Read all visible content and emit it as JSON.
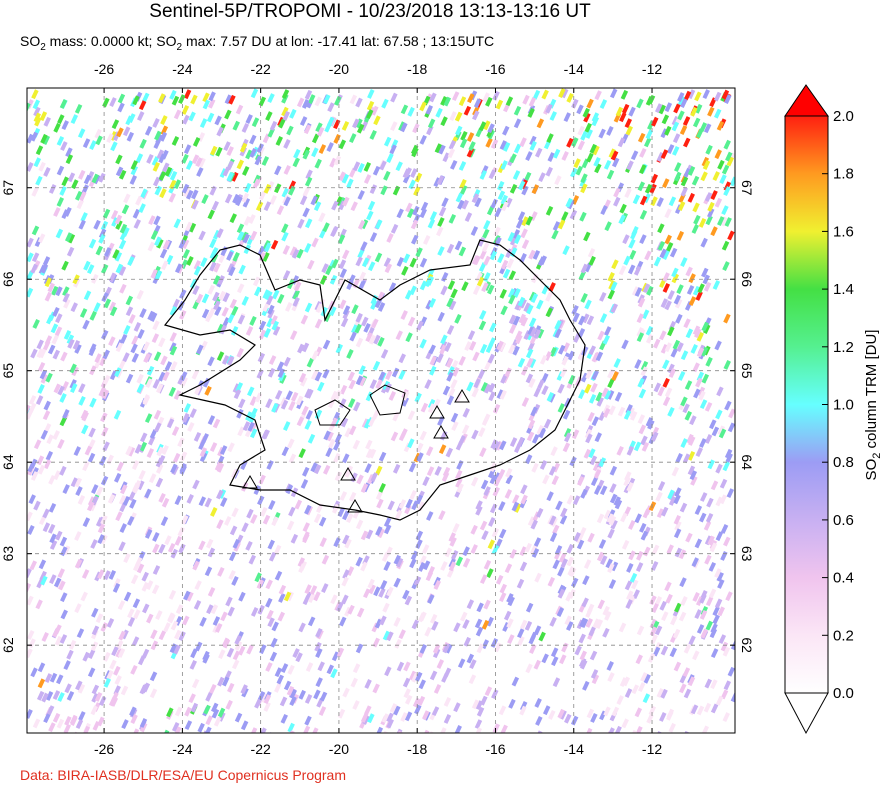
{
  "title": "Sentinel-5P/TROPOMI - 10/23/2018 13:13-13:16 UT",
  "subtitle": [
    "SO",
    "2",
    " mass: 0.0000 kt; SO",
    "2",
    " max: 7.57 DU at lon: -17.41 lat: 67.58 ; 13:15UTC"
  ],
  "map": {
    "lon_range": [
      -27.97,
      -9.88
    ],
    "lat_range": [
      61.04,
      68.09
    ],
    "lon_ticks": [
      -26,
      -24,
      -22,
      -20,
      -18,
      -16,
      -14,
      -12
    ],
    "lat_ticks": [
      62,
      63,
      64,
      65,
      66,
      67
    ]
  },
  "colorbar": {
    "label": [
      "SO",
      "2",
      " column TRM [DU]"
    ],
    "range": [
      0,
      2
    ],
    "ticks": [
      {
        "value": 0,
        "label": "0.0"
      },
      {
        "value": 0.2,
        "label": "0.2"
      },
      {
        "value": 0.4,
        "label": "0.4"
      },
      {
        "value": 0.6,
        "label": "0.6"
      },
      {
        "value": 0.8,
        "label": "0.8"
      },
      {
        "value": 1,
        "label": "1.0"
      },
      {
        "value": 1.2,
        "label": "1.2"
      },
      {
        "value": 1.4,
        "label": "1.4"
      },
      {
        "value": 1.6,
        "label": "1.6"
      },
      {
        "value": 1.8,
        "label": "1.8"
      },
      {
        "value": 2,
        "label": "2.0"
      }
    ]
  },
  "credit": "Data: BIRA-IASB/DLR/ESA/EU Copernicus Program"
}
